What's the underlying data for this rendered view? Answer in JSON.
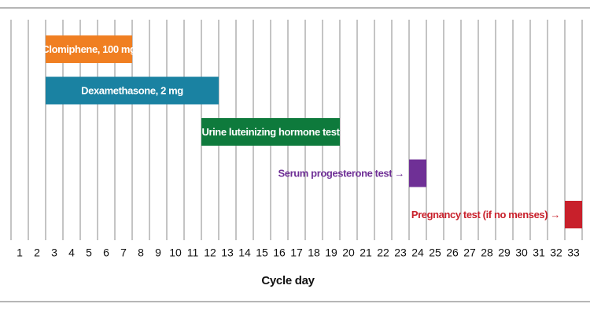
{
  "chart_data": {
    "type": "gantt",
    "xlabel": "Cycle day",
    "xlim": [
      0.5,
      33.5
    ],
    "xticks": [
      1,
      2,
      3,
      4,
      5,
      6,
      7,
      8,
      9,
      10,
      11,
      12,
      13,
      14,
      15,
      16,
      17,
      18,
      19,
      20,
      21,
      22,
      23,
      24,
      25,
      26,
      27,
      28,
      29,
      30,
      31,
      32,
      33
    ],
    "grid": true,
    "tasks": [
      {
        "name": "Clomiphene, 100 mg",
        "color": "#f07f22",
        "start": 3,
        "end": 7,
        "label_position": "inside"
      },
      {
        "name": "Dexamethasone, 2 mg",
        "color": "#1a82a2",
        "start": 3,
        "end": 12,
        "label_position": "inside"
      },
      {
        "name": "Urine luteinizing hormone test",
        "color": "#0e7a3c",
        "start": 12,
        "end": 19,
        "label_position": "inside"
      },
      {
        "name": "Serum progesterone test →",
        "color": "#6f3096",
        "start": 24,
        "end": 24,
        "label_position": "left"
      },
      {
        "name": "Pregnancy test (if no menses) →",
        "color": "#c8202b",
        "start": 33,
        "end": 33,
        "label_position": "left"
      }
    ]
  }
}
